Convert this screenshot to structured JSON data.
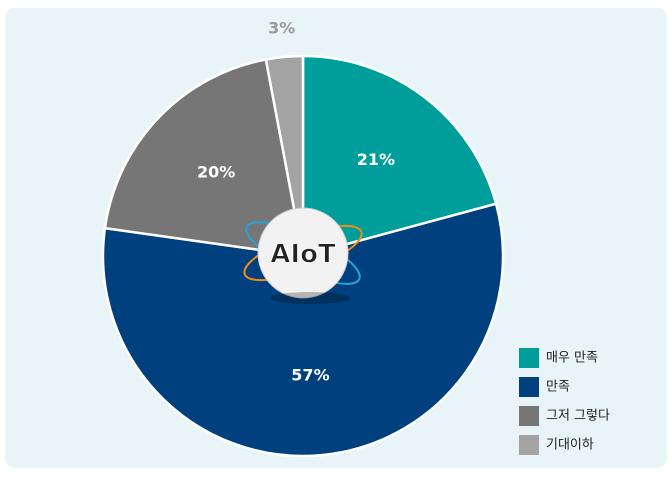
{
  "chart_data": {
    "type": "pie",
    "categories": [
      "매우 만족",
      "만족",
      "그저 그렇다",
      "기대이하"
    ],
    "values": [
      21,
      57,
      20,
      3
    ],
    "value_labels": [
      "21%",
      "57%",
      "20%",
      "3%"
    ],
    "colors": [
      "#009e9a",
      "#00407e",
      "#767676",
      "#a3a3a3"
    ],
    "legend": "bottom-right",
    "logo_text": "AIoT"
  }
}
